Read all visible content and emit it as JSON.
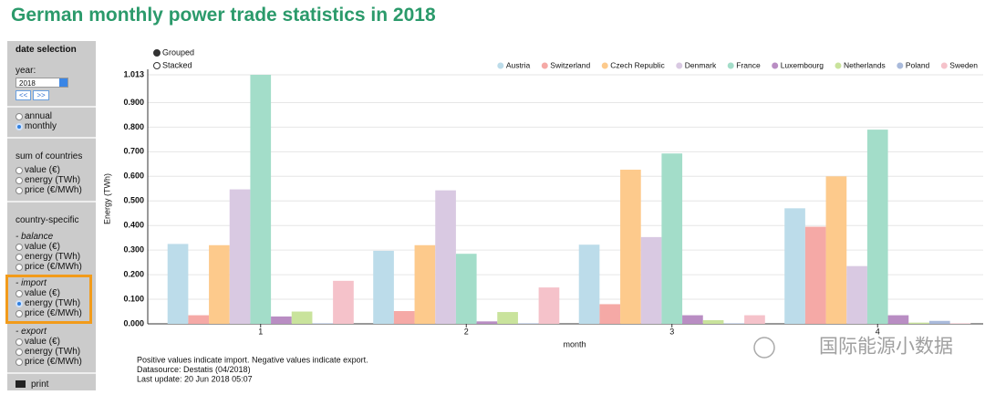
{
  "header": {
    "title": "German monthly power trade statistics in 2018"
  },
  "sidebar": {
    "heading": "date selection",
    "year_label": "year:",
    "year": "2018",
    "prev": "<<",
    "next": ">>",
    "period_options": [
      "annual",
      "monthly"
    ],
    "period_selected": 1,
    "sum_heading": "sum of countries",
    "sum_options": [
      "value (€)",
      "energy (TWh)",
      "price (€/MWh)"
    ],
    "country_heading": "country-specific",
    "groups": [
      {
        "label": "- balance",
        "options": [
          "value (€)",
          "energy (TWh)",
          "price (€/MWh)"
        ]
      },
      {
        "label": "- import",
        "options": [
          "value (€)",
          "energy (TWh)",
          "price (€/MWh)"
        ],
        "selected": 1,
        "highlighted": true
      },
      {
        "label": "- export",
        "options": [
          "value (€)",
          "energy (TWh)",
          "price (€/MWh)"
        ]
      }
    ],
    "print": "print"
  },
  "mode_options": [
    "Grouped",
    "Stacked"
  ],
  "mode_selected": 0,
  "chart_data": {
    "type": "bar",
    "x_label": "month",
    "y_label": "Energy (TWh)",
    "categories": [
      "1",
      "2",
      "3",
      "4"
    ],
    "series": [
      {
        "name": "Austria",
        "color": "#bcdcea",
        "values": [
          0.325,
          0.297,
          0.322,
          0.47
        ]
      },
      {
        "name": "Switzerland",
        "color": "#f5a9a6",
        "values": [
          0.035,
          0.052,
          0.08,
          0.395
        ]
      },
      {
        "name": "Czech Republic",
        "color": "#fdca8c",
        "values": [
          0.32,
          0.32,
          0.627,
          0.6
        ]
      },
      {
        "name": "Denmark",
        "color": "#d9c9e2",
        "values": [
          0.547,
          0.543,
          0.353,
          0.235
        ]
      },
      {
        "name": "France",
        "color": "#a3ddc9",
        "values": [
          1.013,
          0.285,
          0.693,
          0.79
        ]
      },
      {
        "name": "Luxembourg",
        "color": "#b98dc3",
        "values": [
          0.03,
          0.01,
          0.035,
          0.035
        ]
      },
      {
        "name": "Netherlands",
        "color": "#c9e39c",
        "values": [
          0.05,
          0.048,
          0.015,
          0.005
        ]
      },
      {
        "name": "Poland",
        "color": "#a9badb",
        "values": [
          0.002,
          0.002,
          0.002,
          0.012
        ]
      },
      {
        "name": "Sweden",
        "color": "#f5c2ca",
        "values": [
          0.175,
          0.148,
          0.035,
          0.002
        ]
      }
    ],
    "ylim": [
      0,
      1.013
    ],
    "yticks": [
      {
        "value": 0,
        "label": "0.000"
      },
      {
        "value": 0.1,
        "label": "0.100"
      },
      {
        "value": 0.2,
        "label": "0.200"
      },
      {
        "value": 0.3,
        "label": "0.300"
      },
      {
        "value": 0.4,
        "label": "0.400"
      },
      {
        "value": 0.5,
        "label": "0.500"
      },
      {
        "value": 0.6,
        "label": "0.600"
      },
      {
        "value": 0.7,
        "label": "0.700"
      },
      {
        "value": 0.8,
        "label": "0.800"
      },
      {
        "value": 0.9,
        "label": "0.900"
      },
      1.013
    ],
    "grid": true
  },
  "notes": [
    "Positive values indicate import. Negative values indicate export.",
    "Datasource: Destatis (04/2018)",
    "Last update: 20 Jun 2018 05:07"
  ],
  "watermark": "国际能源小数据"
}
